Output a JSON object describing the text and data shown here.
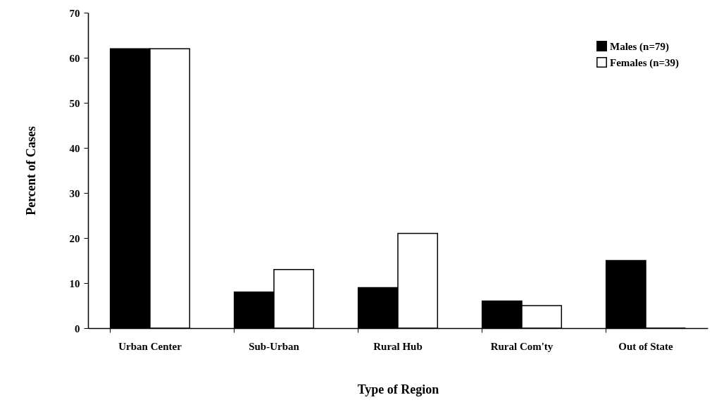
{
  "chart_data": {
    "type": "bar",
    "xlabel": "Type of Region",
    "ylabel": "Percent of Cases",
    "categories": [
      "Urban Center",
      "Sub-Urban",
      "Rural Hub",
      "Rural Com'ty",
      "Out of State"
    ],
    "series": [
      {
        "name": "Males (n=79)",
        "color": "#000000",
        "values": [
          62,
          8,
          9,
          6,
          15
        ]
      },
      {
        "name": "Females (n=39)",
        "color": "#ffffff",
        "values": [
          62,
          13,
          21,
          5,
          0
        ]
      }
    ],
    "ylim": [
      0,
      70
    ],
    "yticks": [
      0,
      10,
      20,
      30,
      40,
      50,
      60,
      70
    ],
    "grid": false,
    "legend": "top right"
  }
}
